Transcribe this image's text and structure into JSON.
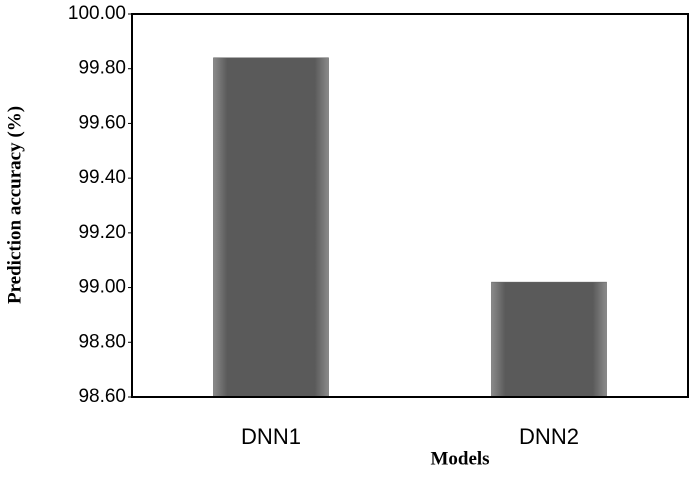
{
  "chart_data": {
    "type": "bar",
    "xlabel": "Models",
    "ylabel": "Prediction accuracy (%)",
    "categories": [
      "DNN1",
      "DNN2"
    ],
    "values": [
      99.84,
      99.02
    ],
    "color": "#5a5a5a",
    "ylim": [
      98.6,
      100.0
    ],
    "yticks": [
      {
        "value": 98.6,
        "label": "98.60"
      },
      {
        "value": 98.8,
        "label": "98.80"
      },
      {
        "value": 99.0,
        "label": "99.00"
      },
      {
        "value": 99.2,
        "label": "99.20"
      },
      {
        "value": 99.4,
        "label": "99.40"
      },
      {
        "value": 99.6,
        "label": "99.60"
      },
      {
        "value": 99.8,
        "label": "99.80"
      },
      {
        "value": 100.0,
        "label": "100.00"
      }
    ],
    "grid": false
  }
}
